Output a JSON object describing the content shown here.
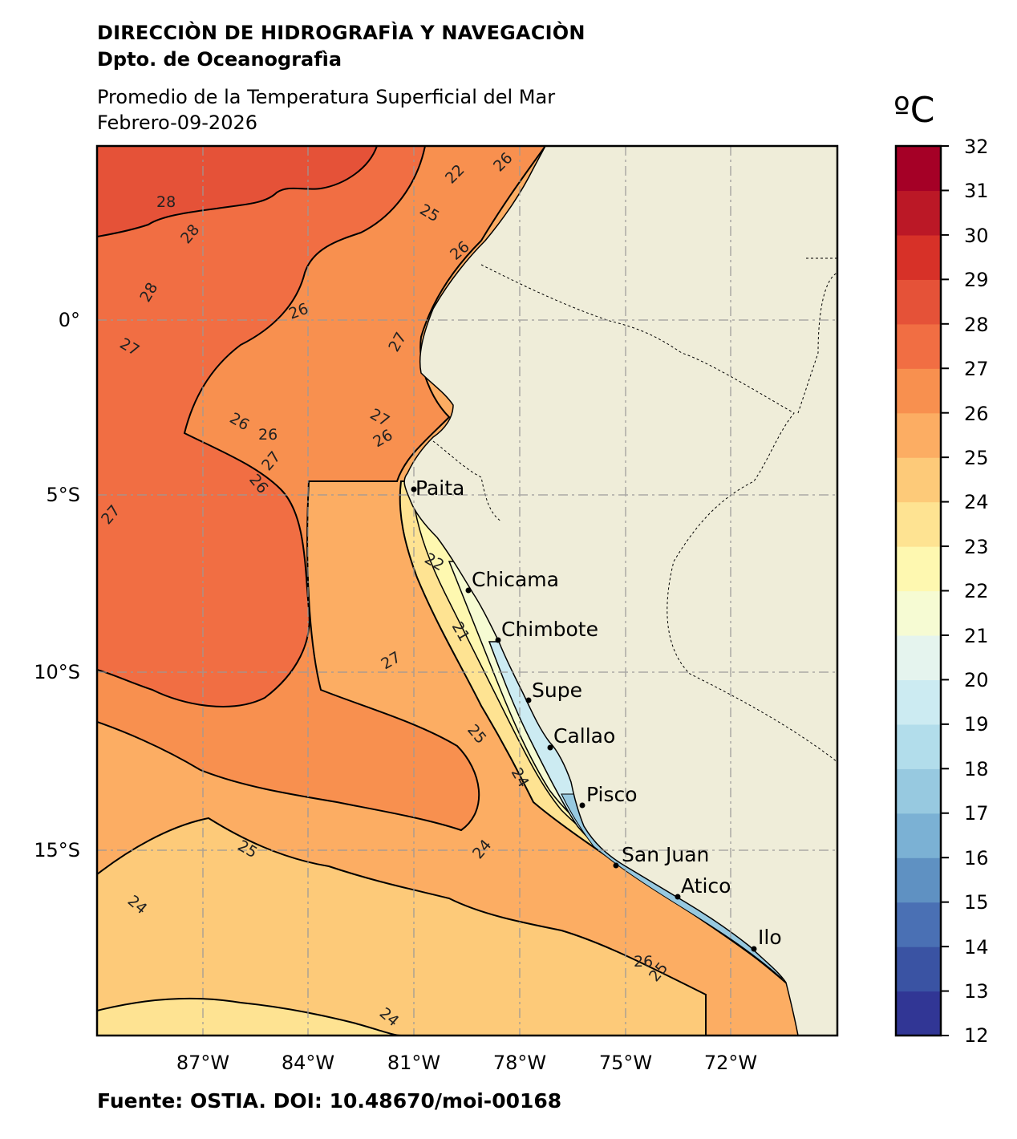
{
  "header": {
    "institution": "DIRECCIÒN DE HIDROGRAFÌA Y NAVEGACIÒN",
    "department": "Dpto. de Oceanografìa",
    "product": "Promedio de la Temperatura Superficial del Mar",
    "date": "Febrero-09-2026"
  },
  "map": {
    "lat_ticks": [
      "0°",
      "5°S",
      "10°S",
      "15°S"
    ],
    "lon_ticks": [
      "87°W",
      "84°W",
      "81°W",
      "78°W",
      "75°W",
      "72°W"
    ],
    "cities": [
      "Paita",
      "Chicama",
      "Chimbote",
      "Supe",
      "Callao",
      "Pisco",
      "San Juan",
      "Atico",
      "Ilo"
    ],
    "contour_labels": [
      "28",
      "28",
      "28",
      "27",
      "27",
      "27",
      "27",
      "27",
      "27",
      "26",
      "26",
      "26",
      "26",
      "26",
      "26",
      "26",
      "26",
      "25",
      "25",
      "25",
      "25",
      "24",
      "24",
      "24",
      "24",
      "22",
      "22",
      "21"
    ],
    "land_color": "#efedd9",
    "border_style": "dashed"
  },
  "colorbar": {
    "unit": "ºC",
    "ticks": [
      "32",
      "31",
      "30",
      "29",
      "28",
      "27",
      "26",
      "25",
      "24",
      "23",
      "22",
      "21",
      "20",
      "19",
      "18",
      "17",
      "16",
      "15",
      "14",
      "13",
      "12"
    ],
    "colors": [
      "#313695",
      "#3a53a3",
      "#4a70b4",
      "#5f91c2",
      "#7bb1d4",
      "#97c9e0",
      "#b2ddeb",
      "#ccebf2",
      "#e5f4ee",
      "#f6fbd3",
      "#fef8b0",
      "#fee392",
      "#fdca79",
      "#fcad63",
      "#f8904f",
      "#f16e43",
      "#e55238",
      "#d73128",
      "#bb1826",
      "#a50026"
    ]
  },
  "footer": {
    "source": "Fuente: OSTIA. DOI: 10.48670/moi-00168"
  }
}
